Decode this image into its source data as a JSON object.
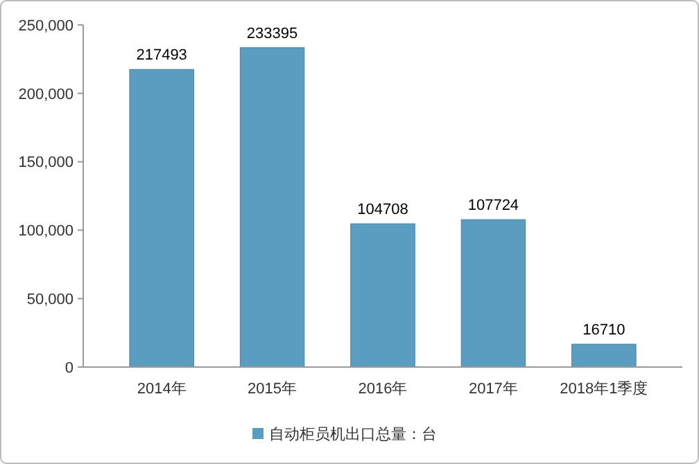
{
  "chart_data": {
    "type": "bar",
    "categories": [
      "2014年",
      "2015年",
      "2016年",
      "2017年",
      "2018年1季度"
    ],
    "series": [
      {
        "name": "自动柜员机出口总量：台",
        "color": "#5b9dc0",
        "values": [
          217493,
          233395,
          104708,
          107724,
          16710
        ]
      }
    ],
    "ylim": [
      0,
      250000
    ],
    "yticks": [
      {
        "value": 0,
        "label": "0"
      },
      {
        "value": 50000,
        "label": "50,000"
      },
      {
        "value": 100000,
        "label": "100,000"
      },
      {
        "value": 150000,
        "label": "150,000"
      },
      {
        "value": 200000,
        "label": "200,000"
      },
      {
        "value": 250000,
        "label": "250,000"
      }
    ],
    "data_labels": true,
    "grid": false,
    "legend": "bottom"
  }
}
